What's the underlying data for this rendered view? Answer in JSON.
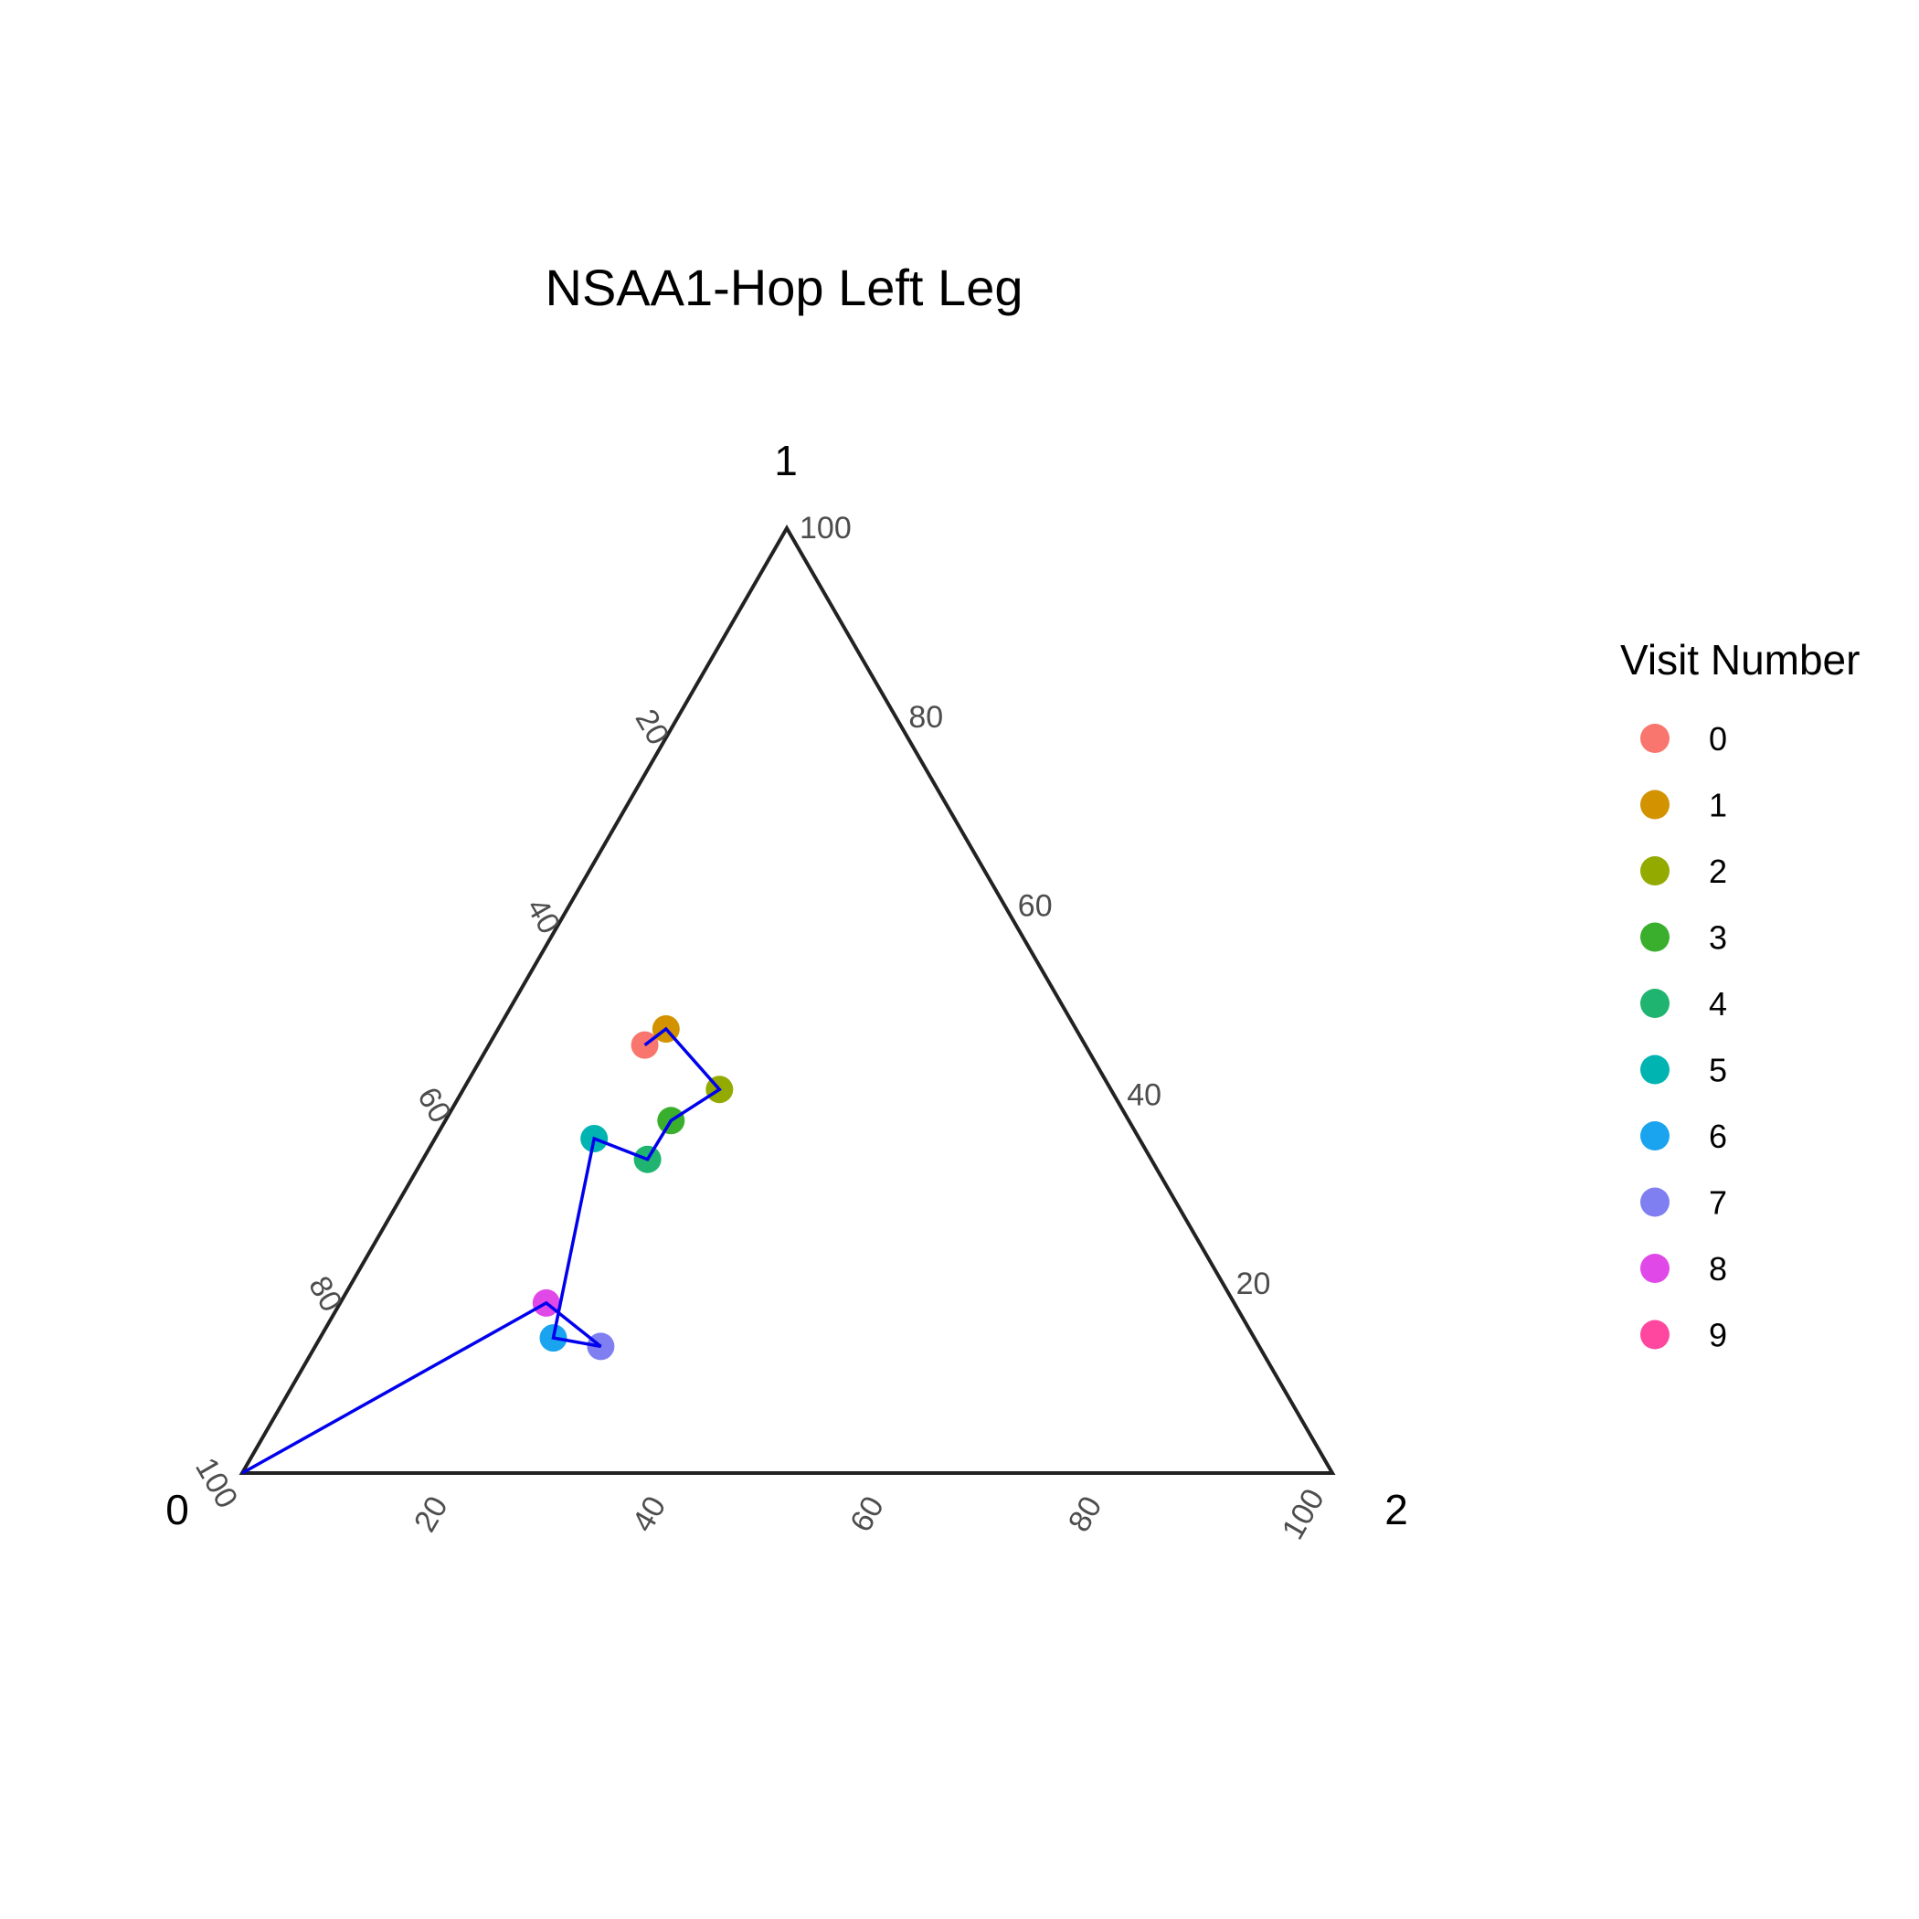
{
  "chart_data": {
    "type": "scatter",
    "subtype": "ternary",
    "title": "NSAA1-Hop Left Leg",
    "axes": {
      "vertex_labels": [
        "0",
        "1",
        "2"
      ],
      "range": [
        0,
        100
      ],
      "ticks": [
        "20",
        "40",
        "60",
        "80",
        "100"
      ]
    },
    "points": [
      {
        "visit": "0",
        "a": 40.4,
        "b": 45.3,
        "c": 14.3
      },
      {
        "visit": "1",
        "a": 37.6,
        "b": 47.0,
        "c": 15.4
      },
      {
        "visit": "2",
        "a": 35.9,
        "b": 40.6,
        "c": 23.5
      },
      {
        "visit": "3",
        "a": 42.0,
        "b": 37.3,
        "c": 20.7
      },
      {
        "visit": "4",
        "a": 46.2,
        "b": 33.2,
        "c": 20.6
      },
      {
        "visit": "5",
        "a": 50.0,
        "b": 35.4,
        "c": 14.6
      },
      {
        "visit": "6",
        "a": 64.3,
        "b": 14.3,
        "c": 21.4
      },
      {
        "visit": "7",
        "a": 60.4,
        "b": 13.4,
        "c": 26.2
      },
      {
        "visit": "8",
        "a": 63.1,
        "b": 18.0,
        "c": 18.9
      },
      {
        "visit": "9",
        "a": 100.0,
        "b": 0.0,
        "c": 0.0
      }
    ],
    "path_color": "#0000ee",
    "legend": {
      "title": "Visit Number",
      "position": "right",
      "entries": [
        {
          "label": "0",
          "color": "#F8766D"
        },
        {
          "label": "1",
          "color": "#D39200"
        },
        {
          "label": "2",
          "color": "#93AA00"
        },
        {
          "label": "3",
          "color": "#3AAF2E"
        },
        {
          "label": "4",
          "color": "#1FB46F"
        },
        {
          "label": "5",
          "color": "#00B4B2"
        },
        {
          "label": "6",
          "color": "#1AA4F0"
        },
        {
          "label": "7",
          "color": "#7F7FF2"
        },
        {
          "label": "8",
          "color": "#E148E8"
        },
        {
          "label": "9",
          "color": "#FF47A0"
        }
      ]
    }
  }
}
